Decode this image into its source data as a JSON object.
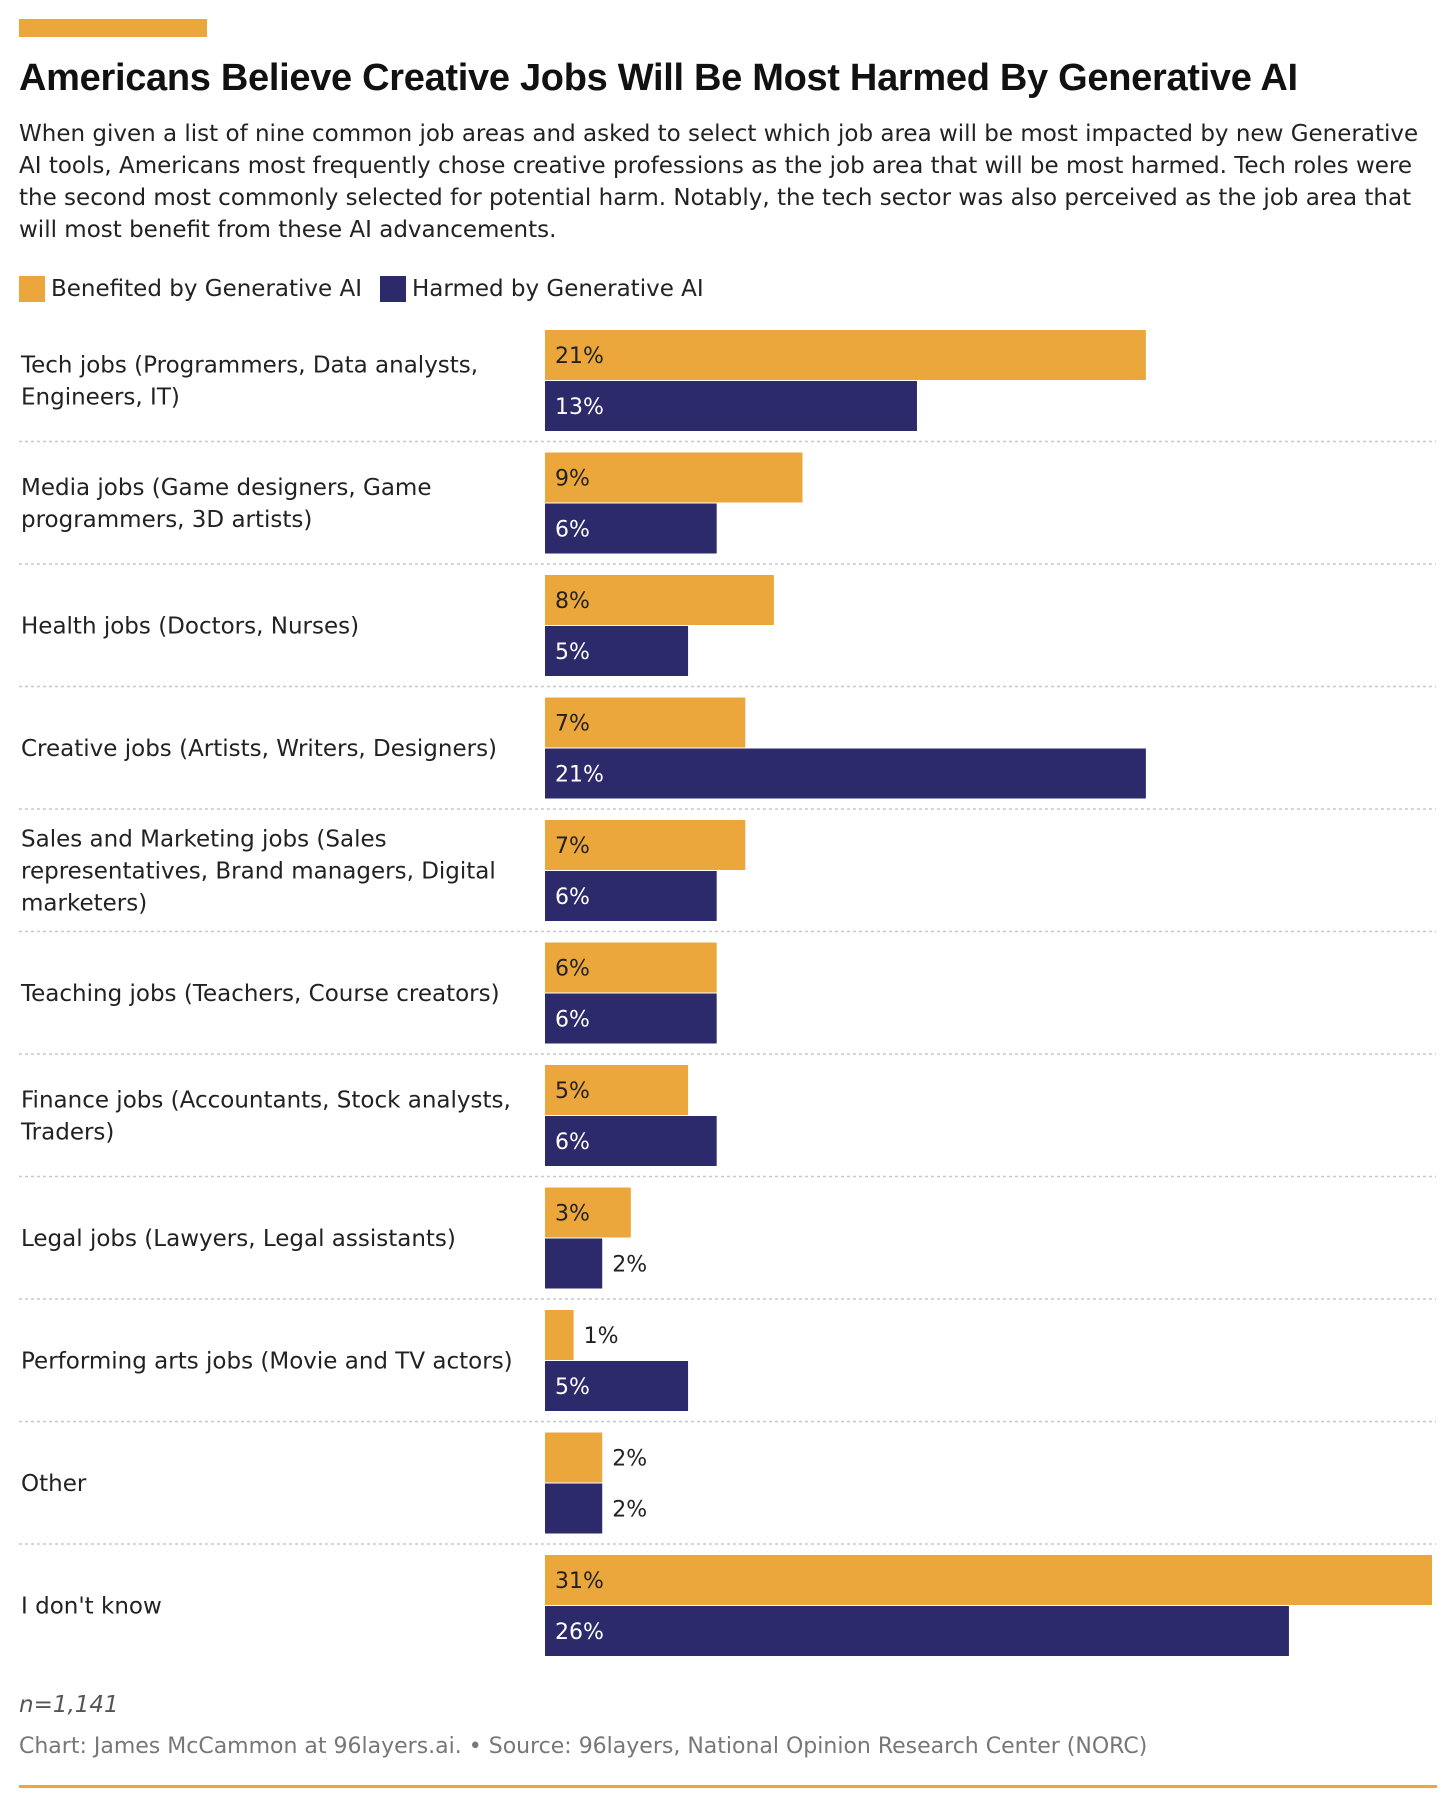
{
  "header": {
    "title": "Americans Believe Creative Jobs Will Be Most Harmed By Generative AI",
    "subtitle": "When given a list of nine common job areas and asked to select which job area will be most impacted by new Generative AI tools, Americans most frequently chose creative professions as the job area that will be most harmed. Tech roles were the second most commonly selected for potential harm. Notably, the tech sector was also perceived as the job area that will most benefit from these AI advancements."
  },
  "legend": [
    {
      "label": "Benefited by Generative AI",
      "color": "#EBA73B"
    },
    {
      "label": "Harmed by Generative AI",
      "color": "#2C2A6B"
    }
  ],
  "chart_data": {
    "type": "bar",
    "orientation": "horizontal",
    "categories": [
      "Tech jobs (Programmers, Data analysts, Engineers, IT)",
      "Media jobs (Game designers, Game programmers, 3D artists)",
      "Health jobs (Doctors, Nurses)",
      "Creative jobs (Artists, Writers, Designers)",
      "Sales and Marketing jobs (Sales representatives, Brand managers, Digital marketers)",
      "Teaching jobs (Teachers, Course creators)",
      "Finance jobs (Accountants, Stock analysts, Traders)",
      "Legal jobs (Lawyers, Legal assistants)",
      "Performing arts jobs (Movie and TV actors)",
      "Other",
      "I don't know"
    ],
    "category_lines": [
      [
        "Tech jobs (Programmers, Data analysts,",
        "Engineers, IT)"
      ],
      [
        "Media jobs (Game designers, Game",
        "programmers, 3D artists)"
      ],
      [
        "Health jobs (Doctors, Nurses)"
      ],
      [
        "Creative jobs (Artists, Writers, Designers)"
      ],
      [
        "Sales and Marketing jobs (Sales",
        "representatives, Brand managers, Digital",
        "marketers)"
      ],
      [
        "Teaching jobs (Teachers, Course creators)"
      ],
      [
        "Finance jobs (Accountants, Stock analysts,",
        "Traders)"
      ],
      [
        "Legal jobs (Lawyers, Legal assistants)"
      ],
      [
        "Performing arts jobs (Movie and TV actors)"
      ],
      [
        "Other"
      ],
      [
        "I don't know"
      ]
    ],
    "series": [
      {
        "name": "Benefited by Generative AI",
        "color": "#EBA73B",
        "values": [
          21,
          9,
          8,
          7,
          7,
          6,
          5,
          3,
          1,
          2,
          31
        ]
      },
      {
        "name": "Harmed by Generative AI",
        "color": "#2C2A6B",
        "values": [
          13,
          6,
          5,
          21,
          6,
          6,
          6,
          2,
          5,
          2,
          26
        ]
      }
    ],
    "value_suffix": "%",
    "xlim": [
      0,
      31
    ],
    "grid": false,
    "legend_position": "top-left"
  },
  "footer": {
    "note": "n=1,141",
    "credit": "Chart: James McCammon at 96layers.ai. • Source: 96layers, National Opinion Research Center (NORC)"
  }
}
